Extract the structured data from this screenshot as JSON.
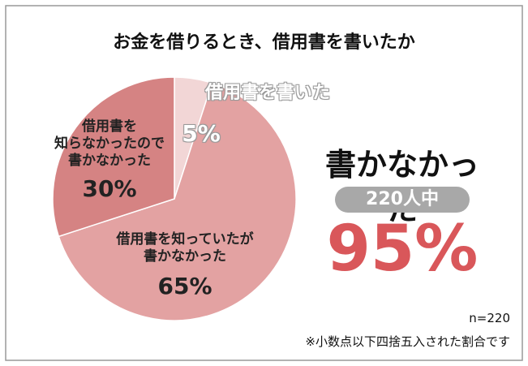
{
  "chart_data": {
    "type": "pie",
    "title": "お金を借りるとき、借用書を書いたか",
    "categories": [
      "借用書を書いた",
      "借用書を知っていたが\n書かなかった",
      "借用書を\n知らなかったので\n書かなかった"
    ],
    "values": [
      5,
      65,
      30
    ],
    "value_labels": [
      "5%",
      "65%",
      "30%"
    ],
    "colors": [
      "#f2d6d6",
      "#e3a2a2",
      "#d58383"
    ],
    "annotations": {
      "headline": "書かなかった",
      "badge": "220人中",
      "big": "95%"
    },
    "notes": [
      "n=220",
      "※小数点以下四捨五入された割合です"
    ]
  }
}
